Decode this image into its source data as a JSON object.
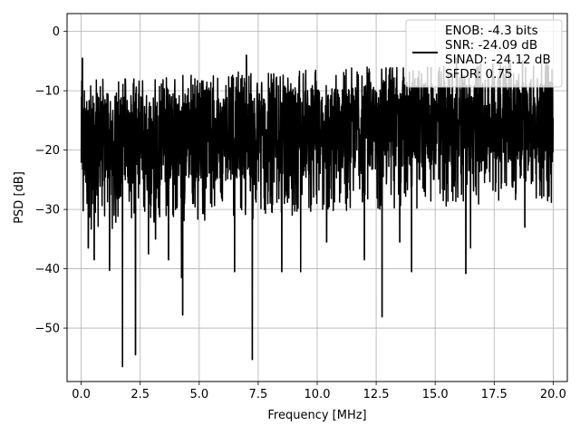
{
  "chart_data": {
    "type": "line",
    "title": "",
    "xlabel": "Frequency [MHz]",
    "ylabel": "PSD [dB]",
    "xlim": [
      -0.6,
      20.6
    ],
    "ylim": [
      -59,
      3
    ],
    "x_ticks": [
      0,
      2.5,
      5,
      7.5,
      10,
      12.5,
      15,
      17.5,
      20
    ],
    "x_tick_labels": [
      "0.0",
      "2.5",
      "5.0",
      "7.5",
      "10.0",
      "12.5",
      "15.0",
      "17.5",
      "20.0"
    ],
    "y_ticks": [
      0,
      -10,
      -20,
      -30,
      -40,
      -50
    ],
    "y_tick_labels": [
      "0",
      "−10",
      "−20",
      "−30",
      "−40",
      "−50"
    ],
    "grid": true,
    "legend_placement": "top-right",
    "series": [
      {
        "color": "#000000",
        "x_range": [
          0,
          20
        ],
        "band_low": [
          -27,
          -26,
          -25.5,
          -25,
          -24.5,
          -24,
          -23.5,
          -23,
          -22.5,
          -22,
          -22
        ],
        "band_high": [
          -11,
          -10.5,
          -10,
          -10,
          -9.5,
          -9.5,
          -9,
          -9,
          -8.5,
          -8,
          -8
        ],
        "spikes": [
          {
            "x": 0.05,
            "y": -4.5
          },
          {
            "x": 0.25,
            "y": -29
          },
          {
            "x": 0.3,
            "y": -36.5
          },
          {
            "x": 0.55,
            "y": -38.5
          },
          {
            "x": 1.2,
            "y": -40.3
          },
          {
            "x": 1.75,
            "y": -56.5
          },
          {
            "x": 2.3,
            "y": -54.5
          },
          {
            "x": 2.85,
            "y": -37.5
          },
          {
            "x": 3.15,
            "y": -35
          },
          {
            "x": 3.7,
            "y": -38.5
          },
          {
            "x": 4.25,
            "y": -41.5
          },
          {
            "x": 4.3,
            "y": -47.8
          },
          {
            "x": 6.5,
            "y": -40.5
          },
          {
            "x": 7.25,
            "y": -55.3
          },
          {
            "x": 8.5,
            "y": -40.5
          },
          {
            "x": 9.3,
            "y": -40.5
          },
          {
            "x": 10.4,
            "y": -35.5
          },
          {
            "x": 12.0,
            "y": -38.5
          },
          {
            "x": 12.75,
            "y": -48.1
          },
          {
            "x": 13.5,
            "y": -35.5
          },
          {
            "x": 14.0,
            "y": -40.5
          },
          {
            "x": 16.3,
            "y": -40.8
          },
          {
            "x": 16.5,
            "y": -36.5
          },
          {
            "x": 18.8,
            "y": -33
          },
          {
            "x": 7.0,
            "y": -4
          },
          {
            "x": 15.9,
            "y": -4.5
          },
          {
            "x": 18.7,
            "y": -5
          }
        ]
      }
    ]
  },
  "legend": {
    "lines": [
      "ENOB: -4.3 bits",
      "SNR: -24.09 dB",
      "SINAD: -24.12 dB",
      "SFDR: 0.75"
    ]
  }
}
